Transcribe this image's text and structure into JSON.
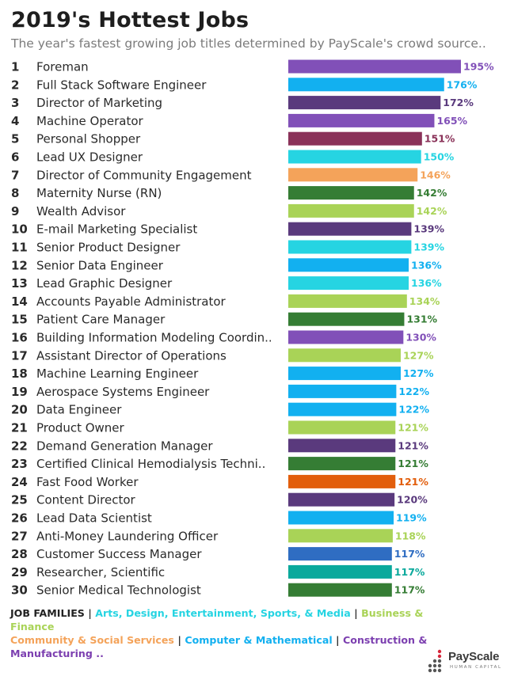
{
  "title": "2019's Hottest Jobs",
  "subtitle": "The year's fastest growing job titles determined by PayScale's crowd source..",
  "colors": {
    "purple": "#8150b8",
    "blue": "#12b0f0",
    "dark_purple": "#5a3a7d",
    "maroon": "#8a3259",
    "cyan": "#26d4e2",
    "orange": "#f4a35a",
    "dark_green": "#357d34",
    "lime": "#a9d357",
    "dark_orange": "#e25e0c",
    "royal_blue": "#2f6dc2",
    "teal": "#0aa99c"
  },
  "chart_data": {
    "type": "bar",
    "orientation": "horizontal",
    "value_unit": "%",
    "xlim": [
      0,
      195
    ],
    "grid": false,
    "categories": [
      "Foreman",
      "Full Stack Software Engineer",
      "Director of Marketing",
      "Machine Operator",
      "Personal Shopper",
      "Lead UX Designer",
      "Director of Community Engagement",
      "Maternity Nurse (RN)",
      "Wealth Advisor",
      "E-mail Marketing Specialist",
      "Senior Product Designer",
      "Senior Data Engineer",
      "Lead Graphic Designer",
      "Accounts Payable Administrator",
      "Patient Care Manager",
      "Building Information Modeling Coordin..",
      "Assistant Director of Operations",
      "Machine Learning Engineer",
      "Aerospace Systems Engineer",
      "Data Engineer",
      "Product Owner",
      "Demand Generation Manager",
      "Certified Clinical Hemodialysis Techni..",
      "Fast Food Worker",
      "Content Director",
      "Lead Data Scientist",
      "Anti-Money Laundering Officer",
      "Customer Success Manager",
      "Researcher, Scientific",
      "Senior Medical Technologist"
    ],
    "ranks": [
      "1",
      "2",
      "3",
      "4",
      "5",
      "6",
      "7",
      "8",
      "9",
      "10",
      "11",
      "12",
      "13",
      "14",
      "15",
      "16",
      "17",
      "18",
      "19",
      "20",
      "21",
      "22",
      "23",
      "24",
      "25",
      "26",
      "27",
      "28",
      "29",
      "30"
    ],
    "values": [
      195,
      176,
      172,
      165,
      151,
      150,
      146,
      142,
      142,
      139,
      139,
      136,
      136,
      134,
      131,
      130,
      127,
      127,
      122,
      122,
      121,
      121,
      121,
      121,
      120,
      119,
      118,
      117,
      117,
      117
    ],
    "value_labels": [
      "195%",
      "176%",
      "172%",
      "165%",
      "151%",
      "150%",
      "146%",
      "142%",
      "142%",
      "139%",
      "139%",
      "136%",
      "136%",
      "134%",
      "131%",
      "130%",
      "127%",
      "127%",
      "122%",
      "122%",
      "121%",
      "121%",
      "121%",
      "121%",
      "120%",
      "119%",
      "118%",
      "117%",
      "117%",
      "117%"
    ],
    "bar_colors": [
      "#8150b8",
      "#12b0f0",
      "#5a3a7d",
      "#8150b8",
      "#8a3259",
      "#26d4e2",
      "#f4a35a",
      "#357d34",
      "#a9d357",
      "#5a3a7d",
      "#26d4e2",
      "#12b0f0",
      "#26d4e2",
      "#a9d357",
      "#357d34",
      "#8150b8",
      "#a9d357",
      "#12b0f0",
      "#12b0f0",
      "#12b0f0",
      "#a9d357",
      "#5a3a7d",
      "#357d34",
      "#e25e0c",
      "#5a3a7d",
      "#12b0f0",
      "#a9d357",
      "#2f6dc2",
      "#0aa99c",
      "#357d34"
    ]
  },
  "legend": {
    "heading": "JOB FAMILIES",
    "separator": "|",
    "items": [
      {
        "label": "Arts, Design, Entertainment, Sports, & Media",
        "color": "#26d4e2"
      },
      {
        "label": "Business & Finance",
        "color": "#a9d357"
      },
      {
        "label": "Community & Social Services",
        "color": "#f4a35a"
      },
      {
        "label": "Computer & Mathematical",
        "color": "#12b0f0"
      },
      {
        "label": "Construction & Manufacturing ..",
        "color": "#7c3fb0"
      }
    ]
  },
  "logo": {
    "name": "PayScale",
    "tagline": "HUMAN CAPITAL"
  }
}
